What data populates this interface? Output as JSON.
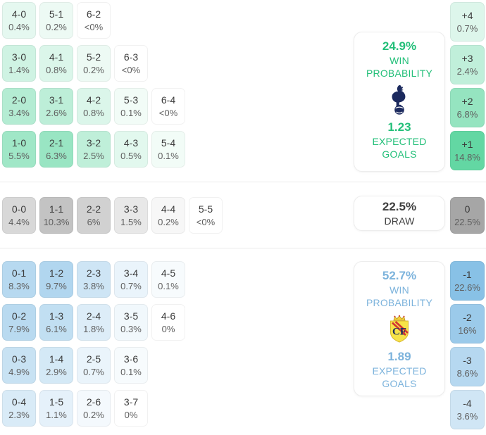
{
  "colors": {
    "home_accent": "#23bf79",
    "away_accent": "#7cb3dc",
    "draw_text": "#3d3d3d",
    "home_tint": [
      60,
      205,
      140
    ],
    "draw_tint": [
      165,
      165,
      165
    ],
    "away_tint": [
      135,
      192,
      230
    ]
  },
  "home": {
    "rows": [
      [
        {
          "score": "4-0",
          "pct": "0.4%",
          "v": 0.4
        },
        {
          "score": "5-1",
          "pct": "0.2%",
          "v": 0.2
        },
        {
          "score": "6-2",
          "pct": "<0%",
          "v": 0
        }
      ],
      [
        {
          "score": "3-0",
          "pct": "1.4%",
          "v": 1.4
        },
        {
          "score": "4-1",
          "pct": "0.8%",
          "v": 0.8
        },
        {
          "score": "5-2",
          "pct": "0.2%",
          "v": 0.2
        },
        {
          "score": "6-3",
          "pct": "<0%",
          "v": 0
        }
      ],
      [
        {
          "score": "2-0",
          "pct": "3.4%",
          "v": 3.4
        },
        {
          "score": "3-1",
          "pct": "2.6%",
          "v": 2.6
        },
        {
          "score": "4-2",
          "pct": "0.8%",
          "v": 0.8
        },
        {
          "score": "5-3",
          "pct": "0.1%",
          "v": 0.1
        },
        {
          "score": "6-4",
          "pct": "<0%",
          "v": 0
        }
      ],
      [
        {
          "score": "1-0",
          "pct": "5.5%",
          "v": 5.5
        },
        {
          "score": "2-1",
          "pct": "6.3%",
          "v": 6.3
        },
        {
          "score": "3-2",
          "pct": "2.5%",
          "v": 2.5
        },
        {
          "score": "4-3",
          "pct": "0.5%",
          "v": 0.5
        },
        {
          "score": "5-4",
          "pct": "0.1%",
          "v": 0.1
        }
      ]
    ],
    "margins": [
      {
        "diff": "+4",
        "pct": "0.7%",
        "v": 0.7
      },
      {
        "diff": "+3",
        "pct": "2.4%",
        "v": 2.4
      },
      {
        "diff": "+2",
        "pct": "6.8%",
        "v": 6.8
      },
      {
        "diff": "+1",
        "pct": "14.8%",
        "v": 14.8
      }
    ],
    "panel": {
      "win_probability": "24.9%",
      "win_label": "WIN",
      "probability_label": "PROBABILITY",
      "expected_goals": "1.23",
      "expected_label": "EXPECTED",
      "goals_label": "GOALS",
      "team": "Tottenham Hotspur"
    }
  },
  "draw": {
    "rows": [
      [
        {
          "score": "0-0",
          "pct": "4.4%",
          "v": 4.4
        },
        {
          "score": "1-1",
          "pct": "10.3%",
          "v": 10.3
        },
        {
          "score": "2-2",
          "pct": "6%",
          "v": 6
        },
        {
          "score": "3-3",
          "pct": "1.5%",
          "v": 1.5
        },
        {
          "score": "4-4",
          "pct": "0.2%",
          "v": 0.2
        },
        {
          "score": "5-5",
          "pct": "<0%",
          "v": 0
        }
      ]
    ],
    "margins": [
      {
        "diff": "0",
        "pct": "22.5%",
        "v": 22.5
      }
    ],
    "panel": {
      "probability": "22.5%",
      "label": "DRAW"
    }
  },
  "away": {
    "rows": [
      [
        {
          "score": "0-1",
          "pct": "8.3%",
          "v": 8.3
        },
        {
          "score": "1-2",
          "pct": "9.7%",
          "v": 9.7
        },
        {
          "score": "2-3",
          "pct": "3.8%",
          "v": 3.8
        },
        {
          "score": "3-4",
          "pct": "0.7%",
          "v": 0.7
        },
        {
          "score": "4-5",
          "pct": "0.1%",
          "v": 0.1
        }
      ],
      [
        {
          "score": "0-2",
          "pct": "7.9%",
          "v": 7.9
        },
        {
          "score": "1-3",
          "pct": "6.1%",
          "v": 6.1
        },
        {
          "score": "2-4",
          "pct": "1.8%",
          "v": 1.8
        },
        {
          "score": "3-5",
          "pct": "0.3%",
          "v": 0.3
        },
        {
          "score": "4-6",
          "pct": "0%",
          "v": 0
        }
      ],
      [
        {
          "score": "0-3",
          "pct": "4.9%",
          "v": 4.9
        },
        {
          "score": "1-4",
          "pct": "2.9%",
          "v": 2.9
        },
        {
          "score": "2-5",
          "pct": "0.7%",
          "v": 0.7
        },
        {
          "score": "3-6",
          "pct": "0.1%",
          "v": 0.1
        }
      ],
      [
        {
          "score": "0-4",
          "pct": "2.3%",
          "v": 2.3
        },
        {
          "score": "1-5",
          "pct": "1.1%",
          "v": 1.1
        },
        {
          "score": "2-6",
          "pct": "0.2%",
          "v": 0.2
        },
        {
          "score": "3-7",
          "pct": "0%",
          "v": 0
        }
      ]
    ],
    "margins": [
      {
        "diff": "-1",
        "pct": "22.6%",
        "v": 22.6
      },
      {
        "diff": "-2",
        "pct": "16%",
        "v": 16
      },
      {
        "diff": "-3",
        "pct": "8.6%",
        "v": 8.6
      },
      {
        "diff": "-4",
        "pct": "3.6%",
        "v": 3.6
      }
    ],
    "panel": {
      "win_probability": "52.7%",
      "win_label": "WIN",
      "probability_label": "PROBABILITY",
      "expected_goals": "1.89",
      "expected_label": "EXPECTED",
      "goals_label": "GOALS",
      "team": "Villarreal"
    }
  }
}
